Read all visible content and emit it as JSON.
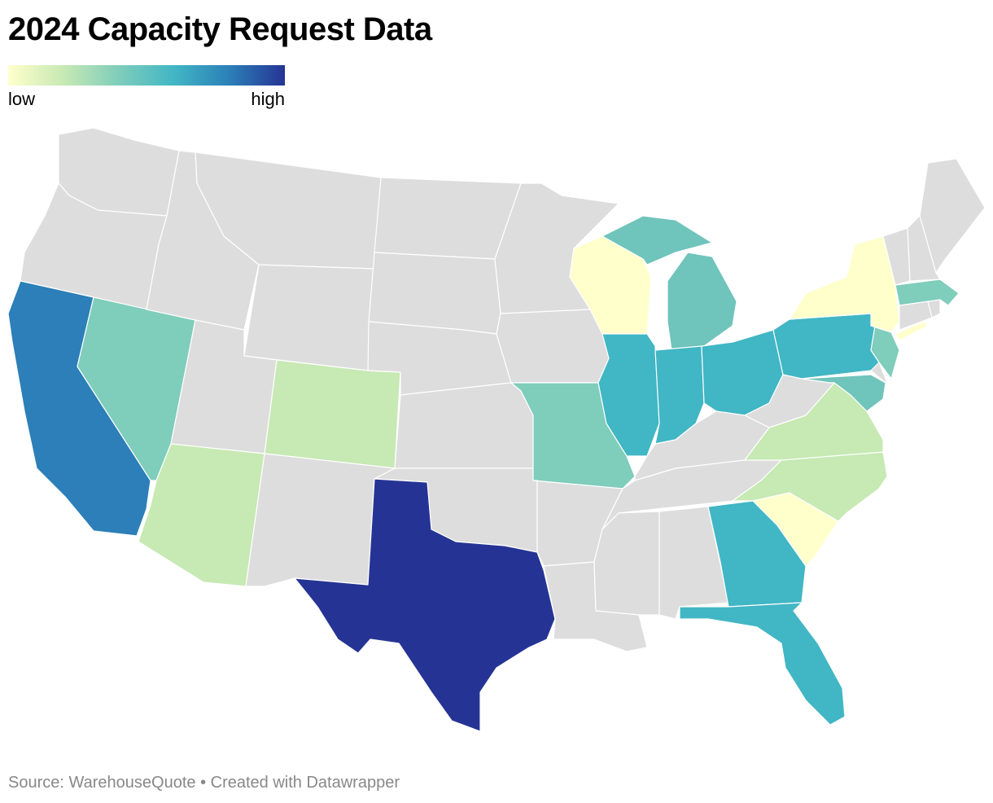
{
  "title": "2024 Capacity Request Data",
  "legend": {
    "low_label": "low",
    "high_label": "high",
    "gradient": [
      "#ffffcc",
      "#c7e9b4",
      "#7fcdbb",
      "#41b6c4",
      "#2c7fb8",
      "#253494"
    ]
  },
  "colors": {
    "no_data": "#dddddd",
    "border": "#ffffff"
  },
  "footer": {
    "source": "Source: WarehouseQuote",
    "separator": "•",
    "credit": "Created with Datawrapper"
  },
  "states": {
    "WA": "#dddddd",
    "OR": "#dddddd",
    "CA": "#2c7fb8",
    "NV": "#7fcdbb",
    "ID": "#dddddd",
    "MT": "#dddddd",
    "WY": "#dddddd",
    "UT": "#dddddd",
    "AZ": "#c7e9b4",
    "CO": "#c7e9b4",
    "NM": "#dddddd",
    "ND": "#dddddd",
    "SD": "#dddddd",
    "NE": "#dddddd",
    "KS": "#dddddd",
    "OK": "#dddddd",
    "TX": "#253494",
    "MN": "#dddddd",
    "IA": "#dddddd",
    "MO": "#7fcdbb",
    "AR": "#dddddd",
    "LA": "#dddddd",
    "WI": "#ffffcc",
    "IL": "#41b6c4",
    "MI": "#6fc4bb",
    "IN": "#41b6c4",
    "OH": "#41b6c4",
    "KY": "#dddddd",
    "TN": "#dddddd",
    "MS": "#dddddd",
    "AL": "#dddddd",
    "GA": "#41b6c4",
    "FL": "#41b6c4",
    "SC": "#ffffcc",
    "NC": "#c7e9b4",
    "VA": "#c7e9b4",
    "WV": "#dddddd",
    "MD": "#6fc4bb",
    "DE": "#dddddd",
    "NJ": "#7fcdbb",
    "PA": "#41b6c4",
    "NY": "#ffffcc",
    "CT": "#dddddd",
    "RI": "#dddddd",
    "MA": "#7fcdbb",
    "VT": "#dddddd",
    "NH": "#dddddd",
    "ME": "#dddddd",
    "LI": "#ffffcc"
  }
}
